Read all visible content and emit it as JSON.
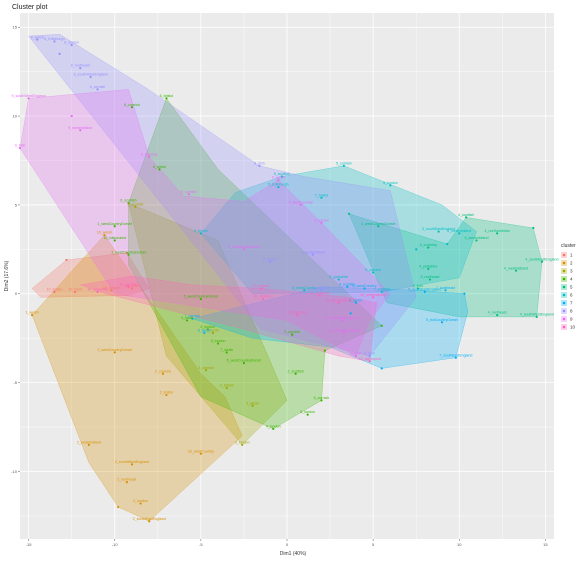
{
  "chart_data": {
    "type": "scatter",
    "title": "Cluster plot",
    "xlabel": "Dim1 (40%)",
    "ylabel": "Dim2 (17.6%)",
    "xlim": [
      -15.5,
      15.5
    ],
    "ylim": [
      -13.8,
      15.8
    ],
    "xticks": [
      -15,
      -10,
      -5,
      0,
      5,
      10,
      15
    ],
    "yticks": [
      -10,
      -5,
      0,
      5,
      10,
      15
    ],
    "tick_labels_x": [
      "-15",
      "-10",
      "-5",
      "0",
      "5",
      "10",
      "15"
    ],
    "tick_labels_y": [
      "-10",
      "-5",
      "0",
      "5",
      "10",
      "15"
    ],
    "grid": true,
    "legend_title": "cluster",
    "legend_position": "right",
    "series": [
      {
        "name": "1",
        "color": "#F8766D",
        "hull": [
          [
            -14.8,
            0.3
          ],
          [
            -12.8,
            1.9
          ],
          [
            -9.3,
            2.3
          ],
          [
            -8.0,
            0.3
          ],
          [
            -9.2,
            -0.1
          ],
          [
            -14.3,
            -0.2
          ]
        ],
        "points": [
          {
            "x": -9.3,
            "y": 2.3,
            "label": ""
          },
          {
            "x": -12.8,
            "y": 1.9,
            "label": ""
          },
          {
            "x": -13.5,
            "y": 0.1,
            "label": "10_Essex"
          },
          {
            "x": -12.3,
            "y": 0.1,
            "label": "10_Kent"
          },
          {
            "x": -9.0,
            "y": 0.3,
            "label": "10_north"
          },
          {
            "x": -10.2,
            "y": 0.2,
            "label": "10_london"
          }
        ]
      },
      {
        "name": "2",
        "color": "#D89000",
        "hull": [
          [
            -10.6,
            3.3
          ],
          [
            -5.0,
            -4.5
          ],
          [
            -3.6,
            -5.8
          ],
          [
            -2.6,
            -8.0
          ],
          [
            -8.0,
            -12.8
          ],
          [
            -9.8,
            -12.0
          ],
          [
            -11.5,
            -9.5
          ],
          [
            -14.8,
            -1.2
          ]
        ],
        "points": [
          {
            "x": -14.8,
            "y": -1.2,
            "label": "1_welsh"
          },
          {
            "x": -10.6,
            "y": 3.3,
            "label": "10_welsh"
          },
          {
            "x": -10.0,
            "y": -3.3,
            "label": "2_westCountryDorset"
          },
          {
            "x": -7.2,
            "y": -4.5,
            "label": "2_cornish"
          },
          {
            "x": -7.0,
            "y": -5.7,
            "label": "2_bristol"
          },
          {
            "x": -11.5,
            "y": -8.5,
            "label": "2_westmidland"
          },
          {
            "x": -9.0,
            "y": -9.6,
            "label": "2_southWestEngland"
          },
          {
            "x": -9.3,
            "y": -10.6,
            "label": "2_northeast"
          },
          {
            "x": -8.5,
            "y": -11.8,
            "label": "2_london"
          },
          {
            "x": -8.0,
            "y": -12.8,
            "label": "2_southEastEngland"
          },
          {
            "x": -5.0,
            "y": -9.0,
            "label": "10_westCountry"
          },
          {
            "x": -9.8,
            "y": -12.0,
            "label": ""
          }
        ]
      },
      {
        "name": "3",
        "color": "#A3A500",
        "hull": [
          [
            -9.2,
            5.1
          ],
          [
            -4.0,
            3.0
          ],
          [
            0.0,
            -6.0
          ],
          [
            -2.6,
            -8.5
          ],
          [
            -7.0,
            -3.5
          ]
        ],
        "points": [
          {
            "x": -4.7,
            "y": -4.3,
            "label": "3_cornish"
          },
          {
            "x": -3.5,
            "y": -5.3,
            "label": "3_bristol"
          },
          {
            "x": -2.0,
            "y": -6.3,
            "label": "3_welsh"
          },
          {
            "x": -2.6,
            "y": -8.5,
            "label": "3_london"
          },
          {
            "x": -8.8,
            "y": 4.9,
            "label": "3_scottish"
          },
          {
            "x": -4.3,
            "y": -2.2,
            "label": "3_north"
          }
        ]
      },
      {
        "name": "4",
        "color": "#39B600",
        "hull": [
          [
            -9.2,
            5.1
          ],
          [
            -7.0,
            11.0
          ],
          [
            -4.0,
            7.0
          ],
          [
            5.5,
            -1.8
          ],
          [
            2.2,
            -3.2
          ],
          [
            2.0,
            -6.0
          ],
          [
            -0.8,
            -7.6
          ],
          [
            -5.0,
            -5.8
          ],
          [
            -9.2,
            1.6
          ]
        ],
        "points": [
          {
            "x": -7.0,
            "y": 11.0,
            "label": "6_bristol"
          },
          {
            "x": -9.0,
            "y": 10.5,
            "label": "6_cornish"
          },
          {
            "x": -7.4,
            "y": 7.0,
            "label": "6_welsh"
          },
          {
            "x": -9.2,
            "y": 5.1,
            "label": "6_scottish"
          },
          {
            "x": -10.0,
            "y": 3.8,
            "label": "1_westCountryDorset"
          },
          {
            "x": -10.0,
            "y": 3.0,
            "label": "10_nationalnd"
          },
          {
            "x": -9.2,
            "y": 2.2,
            "label": "1_westCountryDorset"
          },
          {
            "x": -5.0,
            "y": -0.3,
            "label": "5_westCountryDorset"
          },
          {
            "x": -5.8,
            "y": -1.5,
            "label": "5_north"
          },
          {
            "x": -4.6,
            "y": -2.0,
            "label": "5_london"
          },
          {
            "x": -4.0,
            "y": -2.8,
            "label": "5_london"
          },
          {
            "x": -3.5,
            "y": -3.3,
            "label": "7_welsh"
          },
          {
            "x": -2.5,
            "y": -3.9,
            "label": "5_westCountryDorset"
          },
          {
            "x": 0.3,
            "y": -2.3,
            "label": "5_cornish"
          },
          {
            "x": 0.5,
            "y": -4.5,
            "label": "2_scottish"
          },
          {
            "x": -0.8,
            "y": -7.6,
            "label": "4_london"
          },
          {
            "x": 2.2,
            "y": -3.2,
            "label": ""
          },
          {
            "x": 2.0,
            "y": -6.0,
            "label": "6_cornish"
          },
          {
            "x": 1.2,
            "y": -6.8,
            "label": "6_london"
          },
          {
            "x": 5.5,
            "y": -1.8,
            "label": ""
          }
        ]
      },
      {
        "name": "5",
        "color": "#00BF7D",
        "hull": [
          [
            3.6,
            4.5
          ],
          [
            9.3,
            2.8
          ],
          [
            10.4,
            4.3
          ],
          [
            14.3,
            3.7
          ],
          [
            14.8,
            1.8
          ],
          [
            14.5,
            -1.3
          ],
          [
            10.0,
            -1.3
          ],
          [
            5.8,
            -0.5
          ]
        ],
        "points": [
          {
            "x": 5.3,
            "y": 3.8,
            "label": "4_westCountryDorset"
          },
          {
            "x": 3.6,
            "y": 4.5,
            "label": ""
          },
          {
            "x": 10.4,
            "y": 4.3,
            "label": "4_scottish"
          },
          {
            "x": 12.2,
            "y": 3.4,
            "label": "4_northumbrian"
          },
          {
            "x": 11.0,
            "y": 3.0,
            "label": "4_westmidland"
          },
          {
            "x": 14.3,
            "y": 3.7,
            "label": ""
          },
          {
            "x": 14.8,
            "y": 1.8,
            "label": "4_southEastEngland"
          },
          {
            "x": 13.3,
            "y": 1.3,
            "label": "4_westmidland"
          },
          {
            "x": 14.5,
            "y": -1.3,
            "label": "4_southWestEngland"
          },
          {
            "x": 12.2,
            "y": -1.2,
            "label": "4_northeast"
          },
          {
            "x": 8.2,
            "y": 1.4,
            "label": "4_yorkshire"
          },
          {
            "x": 8.3,
            "y": 0.8,
            "label": "5_northeast"
          },
          {
            "x": 7.6,
            "y": 0.3,
            "label": "4_irish"
          },
          {
            "x": 8.2,
            "y": 2.6,
            "label": "4_cockney"
          }
        ]
      },
      {
        "name": "6",
        "color": "#00BFC4",
        "hull": [
          [
            -3.0,
            5.7
          ],
          [
            -0.3,
            6.6
          ],
          [
            3.3,
            7.2
          ],
          [
            9.0,
            5.0
          ],
          [
            11.0,
            3.5
          ],
          [
            10.0,
            0.9
          ],
          [
            5.5,
            0.1
          ],
          [
            -2.0,
            0.0
          ],
          [
            -5.0,
            3.4
          ]
        ],
        "points": [
          {
            "x": 3.3,
            "y": 7.2,
            "label": "5_cornish"
          },
          {
            "x": 6.0,
            "y": 6.1,
            "label": "5_london"
          },
          {
            "x": -0.3,
            "y": 6.6,
            "label": "5_scottish"
          },
          {
            "x": -0.5,
            "y": 6.0,
            "label": "5_Edinburgh"
          },
          {
            "x": 2.0,
            "y": 5.4,
            "label": "7_bristol"
          },
          {
            "x": 10.0,
            "y": 3.4,
            "label": "5_westmidland"
          },
          {
            "x": 8.8,
            "y": 3.5,
            "label": "5_southEastEngland"
          },
          {
            "x": 7.5,
            "y": 2.5,
            "label": ""
          },
          {
            "x": -5.0,
            "y": 3.4,
            "label": "6_bristol"
          },
          {
            "x": 3.0,
            "y": 0.8,
            "label": "5_yorkshire"
          },
          {
            "x": 5.0,
            "y": 1.2,
            "label": "5_cornish"
          },
          {
            "x": 5.5,
            "y": 0.1,
            "label": "7_scottish"
          },
          {
            "x": 1.0,
            "y": 0.2,
            "label": "6_westCountry"
          },
          {
            "x": 9.3,
            "y": 2.8,
            "label": ""
          }
        ]
      },
      {
        "name": "7",
        "color": "#00B0F6",
        "hull": [
          [
            -5.5,
            -1.4
          ],
          [
            2.0,
            0.4
          ],
          [
            7.5,
            0.2
          ],
          [
            10.3,
            0.0
          ],
          [
            10.5,
            -1.0
          ],
          [
            9.8,
            -3.6
          ],
          [
            5.5,
            -4.2
          ],
          [
            2.5,
            -3.0
          ],
          [
            -2.0,
            -2.5
          ]
        ],
        "points": [
          {
            "x": 3.5,
            "y": 0.4,
            "label": "8_scottish"
          },
          {
            "x": 4.5,
            "y": 0.3,
            "label": "8_westCountry"
          },
          {
            "x": 4.0,
            "y": -0.5,
            "label": "8_welsh"
          },
          {
            "x": 8.0,
            "y": 0.1,
            "label": "5_southEastEngland"
          },
          {
            "x": 9.2,
            "y": 0.2,
            "label": "7_northeast"
          },
          {
            "x": 10.3,
            "y": 0.0,
            "label": ""
          },
          {
            "x": 9.0,
            "y": -1.6,
            "label": "5_ishCountryDorset"
          },
          {
            "x": 9.8,
            "y": -3.6,
            "label": "7_southEastEngland"
          },
          {
            "x": -4.8,
            "y": -2.2,
            "label": "8_welsh"
          },
          {
            "x": -5.5,
            "y": -1.4,
            "label": "7_cornish"
          },
          {
            "x": 3.7,
            "y": -1.1,
            "label": ""
          },
          {
            "x": 5.5,
            "y": -4.2,
            "label": ""
          }
        ]
      },
      {
        "name": "8",
        "color": "#9590FF",
        "hull": [
          [
            -15.0,
            14.5
          ],
          [
            -13.2,
            14.6
          ],
          [
            -8.2,
            11.6
          ],
          [
            -1.6,
            7.2
          ],
          [
            1.0,
            6.6
          ],
          [
            6.0,
            5.8
          ],
          [
            7.5,
            -0.2
          ],
          [
            4.8,
            -3.5
          ],
          [
            -1.5,
            -2.0
          ]
        ],
        "points": [
          {
            "x": -14.5,
            "y": 14.3,
            "label": "8_welsh"
          },
          {
            "x": -13.5,
            "y": 14.2,
            "label": "8_Edinburgh"
          },
          {
            "x": -12.5,
            "y": 14.0,
            "label": "8_london"
          },
          {
            "x": -13.2,
            "y": 13.5,
            "label": ""
          },
          {
            "x": -12.0,
            "y": 12.7,
            "label": "8_northeast"
          },
          {
            "x": -11.4,
            "y": 12.2,
            "label": "8_southWestEngland"
          },
          {
            "x": -11.0,
            "y": 11.5,
            "label": "8_cornish"
          },
          {
            "x": -1.6,
            "y": 7.2,
            "label": "8_irish"
          },
          {
            "x": -1.0,
            "y": 1.8,
            "label": "8_bristol"
          },
          {
            "x": 1.5,
            "y": 2.2,
            "label": "8_westmidland"
          },
          {
            "x": 2.0,
            "y": 0.2,
            "label": "8_cockney"
          },
          {
            "x": 4.8,
            "y": -3.5,
            "label": "8_irish"
          }
        ]
      },
      {
        "name": "9",
        "color": "#E76BF3",
        "hull": [
          [
            -15.0,
            11.0
          ],
          [
            -9.2,
            11.5
          ],
          [
            -8.0,
            7.7
          ],
          [
            -6.0,
            5.5
          ],
          [
            -2.5,
            5.2
          ],
          [
            -0.5,
            6.4
          ],
          [
            2.0,
            4.0
          ],
          [
            6.0,
            0.0
          ],
          [
            4.8,
            -1.5
          ],
          [
            4.0,
            -3.5
          ],
          [
            0.0,
            -1.5
          ],
          [
            -10.0,
            0.0
          ],
          [
            -15.5,
            8.2
          ]
        ],
        "points": [
          {
            "x": -15.0,
            "y": 11.0,
            "label": "9_southWestEngland"
          },
          {
            "x": -12.5,
            "y": 10.0,
            "label": ""
          },
          {
            "x": -12.0,
            "y": 9.2,
            "label": "9_westmidland"
          },
          {
            "x": -15.5,
            "y": 8.2,
            "label": "9_irish"
          },
          {
            "x": -8.0,
            "y": 7.7,
            "label": "9_cockney"
          },
          {
            "x": -5.7,
            "y": 5.6,
            "label": "9_cornish"
          },
          {
            "x": -0.5,
            "y": 6.4,
            "label": "9_welsh"
          },
          {
            "x": 0.8,
            "y": 5.0,
            "label": "9_westCountry"
          },
          {
            "x": 2.0,
            "y": 4.0,
            "label": "9_london"
          },
          {
            "x": -2.5,
            "y": 2.5,
            "label": "9_northeastEngland"
          },
          {
            "x": 3.2,
            "y": -1.5,
            "label": "9_southEastEngland"
          },
          {
            "x": 4.0,
            "y": -3.5,
            "label": "9_irish"
          },
          {
            "x": 3.3,
            "y": -2.2,
            "label": "9_northeastEngland"
          }
        ]
      },
      {
        "name": "10",
        "color": "#FF62BC",
        "hull": [
          [
            -12.0,
            0.5
          ],
          [
            -9.0,
            1.0
          ],
          [
            -5.5,
            0.5
          ],
          [
            -1.5,
            0.3
          ],
          [
            3.5,
            -0.2
          ],
          [
            5.2,
            -0.5
          ],
          [
            4.8,
            -3.8
          ],
          [
            3.0,
            -3.5
          ],
          [
            -2.5,
            -2.0
          ],
          [
            -10.5,
            0.0
          ]
        ],
        "points": [
          {
            "x": -11.0,
            "y": 0.1,
            "label": "10_yorkshire"
          },
          {
            "x": -9.2,
            "y": 0.4,
            "label": "10_cornish"
          },
          {
            "x": -1.5,
            "y": 0.3,
            "label": "10_london"
          },
          {
            "x": -1.4,
            "y": -0.3,
            "label": "10_northern"
          },
          {
            "x": 5.0,
            "y": -0.2,
            "label": "10_westmidland"
          },
          {
            "x": 3.0,
            "y": -0.5,
            "label": "10_westmidland"
          },
          {
            "x": 1.9,
            "y": -0.1,
            "label": "10_cockney"
          },
          {
            "x": 4.8,
            "y": -3.8,
            "label": "10_welshpool"
          },
          {
            "x": 0.6,
            "y": -1.2,
            "label": "10_cornish"
          }
        ]
      }
    ]
  }
}
